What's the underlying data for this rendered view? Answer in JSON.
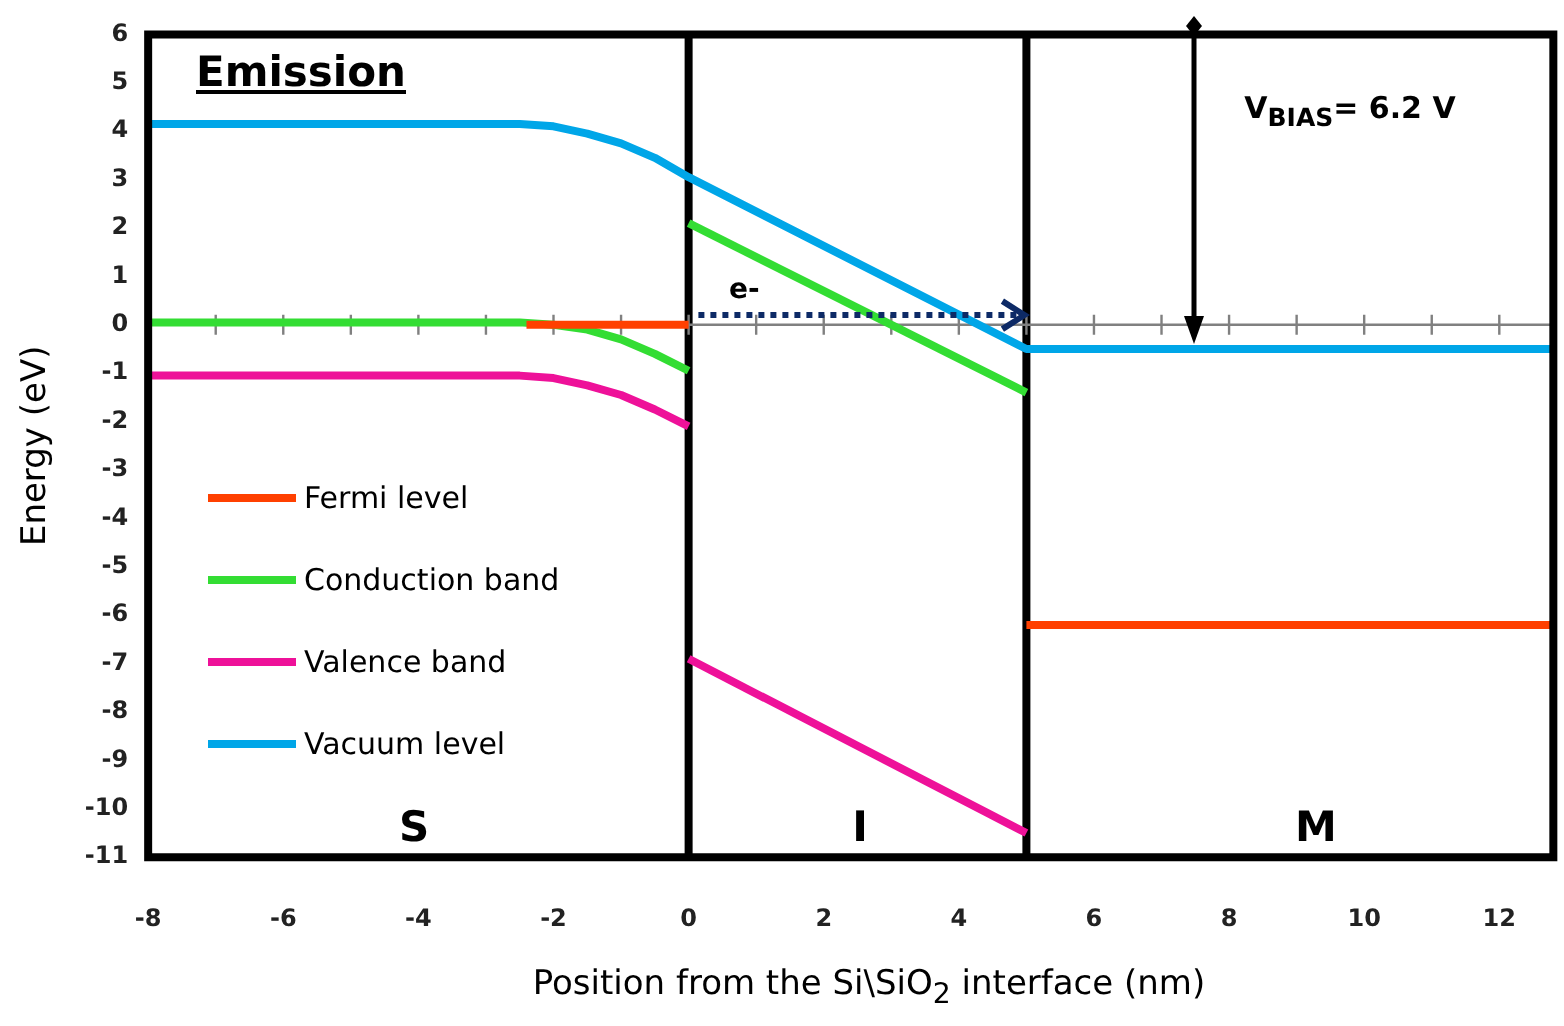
{
  "chart_data": {
    "type": "line",
    "title": "Emission",
    "xlabel": "Position from the Si\\SiO$_{2}$ interface (nm)",
    "ylabel": "Energy (eV)",
    "xlim": [
      -8,
      12.8
    ],
    "xticks": [
      -8,
      -6,
      -4,
      -2,
      0,
      2,
      4,
      6,
      8,
      10,
      12
    ],
    "ylim": [
      -11,
      6
    ],
    "yticks": [
      -11,
      -10,
      -9,
      -8,
      -7,
      -6,
      -5,
      -4,
      -3,
      -2,
      -1,
      0,
      1,
      2,
      3,
      4,
      5,
      6
    ],
    "grid": false,
    "legend": "bottom left",
    "marker": "none",
    "series": [
      {
        "name": "Fermi level",
        "color": "#ff4000",
        "x": [
          -2.4,
          0
        ],
        "values": [
          0,
          0
        ]
      },
      {
        "name": "Conduction band",
        "color": "#33dd33",
        "x": [
          -8,
          -2.5,
          -2,
          -1.5,
          -1,
          -0.5,
          0
        ],
        "values": [
          0.05,
          0.05,
          0.0,
          -0.1,
          -0.3,
          -0.6,
          -0.95
        ]
      },
      {
        "name": "Valence band",
        "color": "#ee1199",
        "x": [
          -8,
          -2.5,
          -2,
          -1.5,
          -1,
          -0.5,
          0
        ],
        "values": [
          -1.05,
          -1.05,
          -1.1,
          -1.25,
          -1.45,
          -1.75,
          -2.1
        ]
      },
      {
        "name": "Vacuum level",
        "color": "#00a6e8",
        "x": [
          -8,
          -2.5,
          -2,
          -1.5,
          -1,
          -0.5,
          0,
          5,
          12.8
        ],
        "values": [
          4.15,
          4.15,
          4.1,
          3.95,
          3.75,
          3.45,
          3.05,
          -0.5,
          -0.5
        ]
      },
      {
        "color": "#ff4000",
        "x": [
          5,
          12.8
        ],
        "values": [
          -6.2,
          -6.2
        ]
      },
      {
        "color": "#33dd33",
        "x": [
          0,
          5
        ],
        "values": [
          2.1,
          -1.4
        ]
      },
      {
        "color": "#ee1199",
        "x": [
          0,
          5
        ],
        "values": [
          -6.9,
          -10.5
        ]
      }
    ],
    "ref_lines": [
      {
        "axis": "x",
        "value": 0,
        "color": "#000000"
      },
      {
        "axis": "x",
        "value": 5,
        "color": "#000000"
      },
      {
        "axis": "y",
        "value": 0,
        "color": "#808080"
      }
    ],
    "annotations": [
      {
        "text": "e-",
        "x": 5,
        "y": 0.2
      },
      "V$_{BIAS}$= 6.2 V",
      "S",
      "I",
      "M"
    ]
  }
}
